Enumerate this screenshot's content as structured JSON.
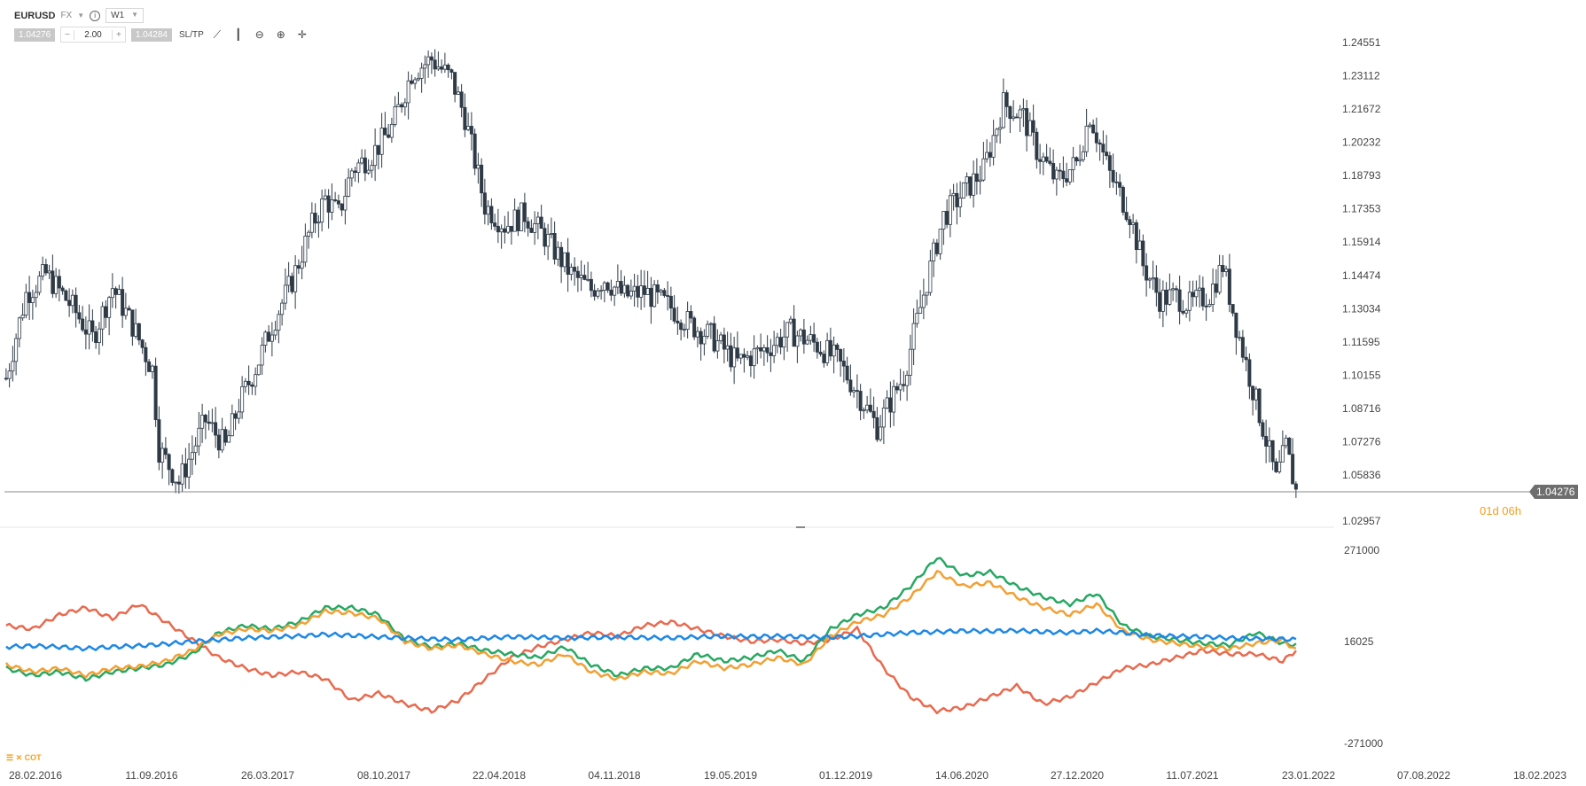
{
  "toolbar": {
    "symbol": "EURUSD",
    "instrument_type": "FX",
    "timeframe": "W1",
    "bid": "1.04276",
    "ask": "1.04284",
    "quantity": "2.00",
    "minus": "−",
    "plus": "+",
    "sltp": "SL/TP",
    "icons": [
      "line-chart-icon",
      "candles-icon",
      "zoom-out-icon",
      "zoom-in-icon",
      "crosshair-icon"
    ]
  },
  "cot_label": "COT",
  "colors": {
    "candle": "#2e3a46",
    "price_line": "#8a8a8a",
    "price_tag_bg": "#6e6e6e",
    "countdown": "#f0a020",
    "red": "#e86a4f",
    "green": "#27a863",
    "orange": "#f2a035",
    "blue": "#1e88e5"
  },
  "chart_data": [
    {
      "type": "candlestick",
      "title": "EURUSD",
      "timeframe": "W1",
      "x_tick_labels": [
        "28.02.2016",
        "11.09.2016",
        "26.03.2017",
        "08.10.2017",
        "22.04.2018",
        "04.11.2018",
        "19.05.2019",
        "01.12.2019",
        "14.06.2020",
        "27.12.2020",
        "11.07.2021",
        "23.01.2022",
        "07.08.2022",
        "18.02.2023"
      ],
      "y_tick_labels": [
        "1.24551",
        "1.23112",
        "1.21672",
        "1.20232",
        "1.18793",
        "1.17353",
        "1.15914",
        "1.14474",
        "1.13034",
        "1.11595",
        "1.10155",
        "1.08716",
        "1.07276",
        "1.05836",
        "1.02957"
      ],
      "ylim": [
        1.02957,
        1.24551
      ],
      "current_price": "1.04276",
      "countdown": "01d 06h",
      "close_path": {
        "x_index": [
          0,
          6,
          12,
          20,
          26,
          32,
          38,
          44,
          46,
          52,
          60,
          66,
          70,
          76,
          80,
          86,
          92,
          96,
          100,
          104,
          110,
          116,
          122,
          128,
          134,
          138,
          144,
          150,
          156,
          162,
          170,
          176,
          180,
          186,
          192,
          200,
          206,
          212,
          220,
          228,
          236,
          244,
          250,
          256,
          262,
          270,
          276,
          282,
          288,
          294,
          300,
          306,
          310,
          316,
          322,
          326,
          332,
          338,
          342,
          347
        ],
        "close": [
          1.094,
          1.132,
          1.141,
          1.126,
          1.112,
          1.135,
          1.118,
          1.098,
          1.062,
          1.047,
          1.075,
          1.063,
          1.082,
          1.102,
          1.118,
          1.138,
          1.163,
          1.175,
          1.168,
          1.188,
          1.195,
          1.207,
          1.232,
          1.238,
          1.229,
          1.212,
          1.172,
          1.163,
          1.168,
          1.158,
          1.141,
          1.134,
          1.139,
          1.131,
          1.133,
          1.126,
          1.118,
          1.113,
          1.101,
          1.107,
          1.115,
          1.109,
          1.102,
          1.088,
          1.072,
          1.095,
          1.132,
          1.167,
          1.178,
          1.188,
          1.218,
          1.212,
          1.197,
          1.183,
          1.191,
          1.213,
          1.186,
          1.168,
          1.145,
          1.13
        ]
      },
      "close_path_tail": {
        "x_index": [
          352,
          356,
          362,
          366,
          370,
          374,
          378,
          382,
          385,
          388
        ],
        "close": [
          1.131,
          1.127,
          1.132,
          1.145,
          1.118,
          1.095,
          1.072,
          1.048,
          1.063,
          1.043
        ]
      }
    },
    {
      "type": "line",
      "title": "COT",
      "y_tick_labels": [
        "271000",
        "16025",
        "-271000"
      ],
      "ylim": [
        -271000,
        271000
      ],
      "series": [
        {
          "color": "#e86a4f",
          "x_index": [
            0,
            8,
            16,
            24,
            32,
            40,
            48,
            56,
            64,
            72,
            80,
            88,
            96,
            104,
            112,
            120,
            128,
            136,
            144,
            152,
            160,
            168,
            176,
            184,
            192,
            200,
            208,
            216,
            224,
            232,
            240,
            248,
            256,
            264,
            272,
            280,
            288,
            296,
            304,
            312,
            320,
            328,
            336,
            344,
            352,
            360,
            368,
            376,
            384,
            388
          ],
          "values": [
            60000,
            50000,
            90000,
            110000,
            80000,
            120000,
            70000,
            20000,
            -30000,
            -60000,
            -80000,
            -70000,
            -90000,
            -150000,
            -130000,
            -160000,
            -180000,
            -150000,
            -90000,
            -30000,
            0,
            20000,
            40000,
            30000,
            60000,
            70000,
            50000,
            30000,
            15000,
            20000,
            10000,
            20000,
            50000,
            -60000,
            -140000,
            -180000,
            -170000,
            -140000,
            -110000,
            -160000,
            -140000,
            -100000,
            -60000,
            -50000,
            -30000,
            -10000,
            -20000,
            -20000,
            -40000,
            -10000
          ]
        },
        {
          "color": "#27a863",
          "x_index": [
            0,
            8,
            16,
            24,
            32,
            40,
            48,
            56,
            64,
            72,
            80,
            88,
            96,
            104,
            112,
            120,
            128,
            136,
            144,
            152,
            160,
            168,
            176,
            184,
            192,
            200,
            208,
            216,
            224,
            232,
            240,
            248,
            256,
            264,
            272,
            280,
            288,
            296,
            304,
            312,
            320,
            328,
            336,
            344,
            352,
            360,
            368,
            376,
            384,
            388
          ],
          "values": [
            -60000,
            -80000,
            -70000,
            -90000,
            -70000,
            -60000,
            -50000,
            -20000,
            40000,
            60000,
            50000,
            70000,
            110000,
            110000,
            90000,
            20000,
            0,
            10000,
            -10000,
            -20000,
            -30000,
            0,
            -50000,
            -80000,
            -60000,
            -60000,
            -20000,
            -40000,
            -30000,
            -10000,
            -40000,
            50000,
            90000,
            110000,
            170000,
            250000,
            200000,
            210000,
            170000,
            140000,
            120000,
            150000,
            60000,
            30000,
            20000,
            10000,
            5000,
            40000,
            10000,
            5000
          ]
        },
        {
          "color": "#f2a035",
          "x_index": [
            0,
            8,
            16,
            24,
            32,
            40,
            48,
            56,
            64,
            72,
            80,
            88,
            96,
            104,
            112,
            120,
            128,
            136,
            144,
            152,
            160,
            168,
            176,
            184,
            192,
            200,
            208,
            216,
            224,
            232,
            240,
            248,
            256,
            264,
            272,
            280,
            288,
            296,
            304,
            312,
            320,
            328,
            336,
            344,
            352,
            360,
            368,
            376,
            384,
            388
          ],
          "values": [
            -50000,
            -70000,
            -60000,
            -80000,
            -60000,
            -55000,
            -40000,
            -10000,
            35000,
            50000,
            45000,
            60000,
            100000,
            95000,
            80000,
            15000,
            -5000,
            5000,
            -20000,
            -40000,
            -50000,
            -20000,
            -70000,
            -90000,
            -70000,
            -75000,
            -40000,
            -60000,
            -50000,
            -30000,
            -50000,
            30000,
            70000,
            90000,
            140000,
            210000,
            170000,
            180000,
            140000,
            110000,
            90000,
            120000,
            45000,
            20000,
            10000,
            0,
            -5000,
            10000,
            20000,
            -10000
          ]
        },
        {
          "color": "#1e88e5",
          "x_index": [
            0,
            8,
            16,
            24,
            32,
            40,
            48,
            56,
            64,
            72,
            80,
            88,
            96,
            104,
            112,
            120,
            128,
            136,
            144,
            152,
            160,
            168,
            176,
            184,
            192,
            200,
            208,
            216,
            224,
            232,
            240,
            248,
            256,
            264,
            272,
            280,
            288,
            296,
            304,
            312,
            320,
            328,
            336,
            344,
            352,
            360,
            368,
            376,
            384,
            388
          ],
          "values": [
            0,
            3000,
            0,
            -5000,
            0,
            3000,
            8000,
            15000,
            20000,
            25000,
            28000,
            30000,
            35000,
            32000,
            28000,
            25000,
            22000,
            20000,
            25000,
            28000,
            27000,
            25000,
            26000,
            27000,
            26000,
            25000,
            28000,
            30000,
            29000,
            30000,
            28000,
            27000,
            30000,
            35000,
            40000,
            42000,
            45000,
            44000,
            46000,
            42000,
            40000,
            45000,
            40000,
            32000,
            30000,
            28000,
            25000,
            23000,
            22000,
            20000
          ]
        }
      ]
    }
  ],
  "date_labels": [
    "28.02.2016",
    "11.09.2016",
    "26.03.2017",
    "08.10.2017",
    "22.04.2018",
    "04.11.2018",
    "19.05.2019",
    "01.12.2019",
    "14.06.2020",
    "27.12.2020",
    "11.07.2021",
    "23.01.2022",
    "07.08.2022",
    "18.02.2023"
  ]
}
